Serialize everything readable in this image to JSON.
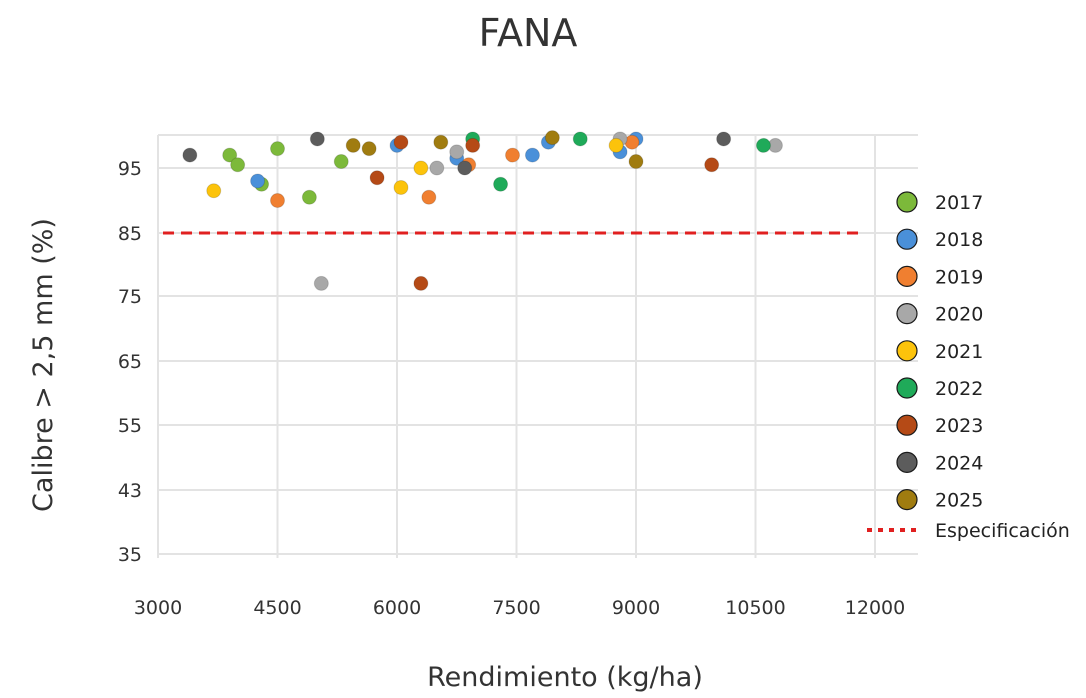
{
  "chart_data": {
    "type": "scatter",
    "title": "FANA",
    "xlabel": "Rendimiento (kg/ha)",
    "ylabel": "Calibre > 2,5 mm (%)",
    "xlim": [
      3000,
      12000
    ],
    "x_ticks": [
      3000,
      4500,
      6000,
      7500,
      9000,
      10500,
      12000
    ],
    "y_ticks": [
      35,
      43,
      55,
      65,
      75,
      85,
      95
    ],
    "grid": true,
    "legend_position": "right",
    "series": [
      {
        "name": "2017",
        "color": "#7cb93a",
        "points": [
          [
            3900,
            97
          ],
          [
            4000,
            95.5
          ],
          [
            4300,
            92.5
          ],
          [
            4500,
            98
          ],
          [
            4900,
            90.5
          ],
          [
            5300,
            96
          ]
        ]
      },
      {
        "name": "2018",
        "color": "#4a90d9",
        "points": [
          [
            4250,
            93
          ],
          [
            6000,
            98.5
          ],
          [
            6750,
            96.5
          ],
          [
            7700,
            97
          ],
          [
            7900,
            99
          ],
          [
            8800,
            97.5
          ],
          [
            9000,
            99.5
          ]
        ]
      },
      {
        "name": "2019",
        "color": "#f07f30",
        "points": [
          [
            4500,
            90
          ],
          [
            6400,
            90.5
          ],
          [
            6900,
            95.5
          ],
          [
            7450,
            97
          ],
          [
            8950,
            99
          ]
        ]
      },
      {
        "name": "2020",
        "color": "#a8a8a8",
        "points": [
          [
            5050,
            77
          ],
          [
            6500,
            95
          ],
          [
            6750,
            97.5
          ],
          [
            8800,
            99.5
          ],
          [
            10750,
            98.5
          ]
        ]
      },
      {
        "name": "2021",
        "color": "#fcc30b",
        "points": [
          [
            3700,
            91.5
          ],
          [
            6050,
            92
          ],
          [
            6300,
            95
          ],
          [
            8750,
            98.5
          ]
        ]
      },
      {
        "name": "2022",
        "color": "#1faa59",
        "points": [
          [
            6950,
            99.5
          ],
          [
            7300,
            92.5
          ],
          [
            8300,
            99.5
          ],
          [
            10600,
            98.5
          ]
        ]
      },
      {
        "name": "2023",
        "color": "#b54a16",
        "points": [
          [
            5750,
            93.5
          ],
          [
            6050,
            99
          ],
          [
            6300,
            77
          ],
          [
            6950,
            98.5
          ],
          [
            9950,
            95.5
          ]
        ]
      },
      {
        "name": "2024",
        "color": "#5c5c5c",
        "points": [
          [
            3400,
            97
          ],
          [
            5000,
            99.5
          ],
          [
            6850,
            95
          ],
          [
            10100,
            99.5
          ]
        ]
      },
      {
        "name": "2025",
        "color": "#a07c10",
        "points": [
          [
            5450,
            98.5
          ],
          [
            5650,
            98
          ],
          [
            6550,
            99
          ],
          [
            7950,
            99.7
          ],
          [
            9000,
            96
          ]
        ]
      }
    ],
    "specification": {
      "name": "Especificación",
      "value": 85,
      "color": "#e02020"
    }
  }
}
